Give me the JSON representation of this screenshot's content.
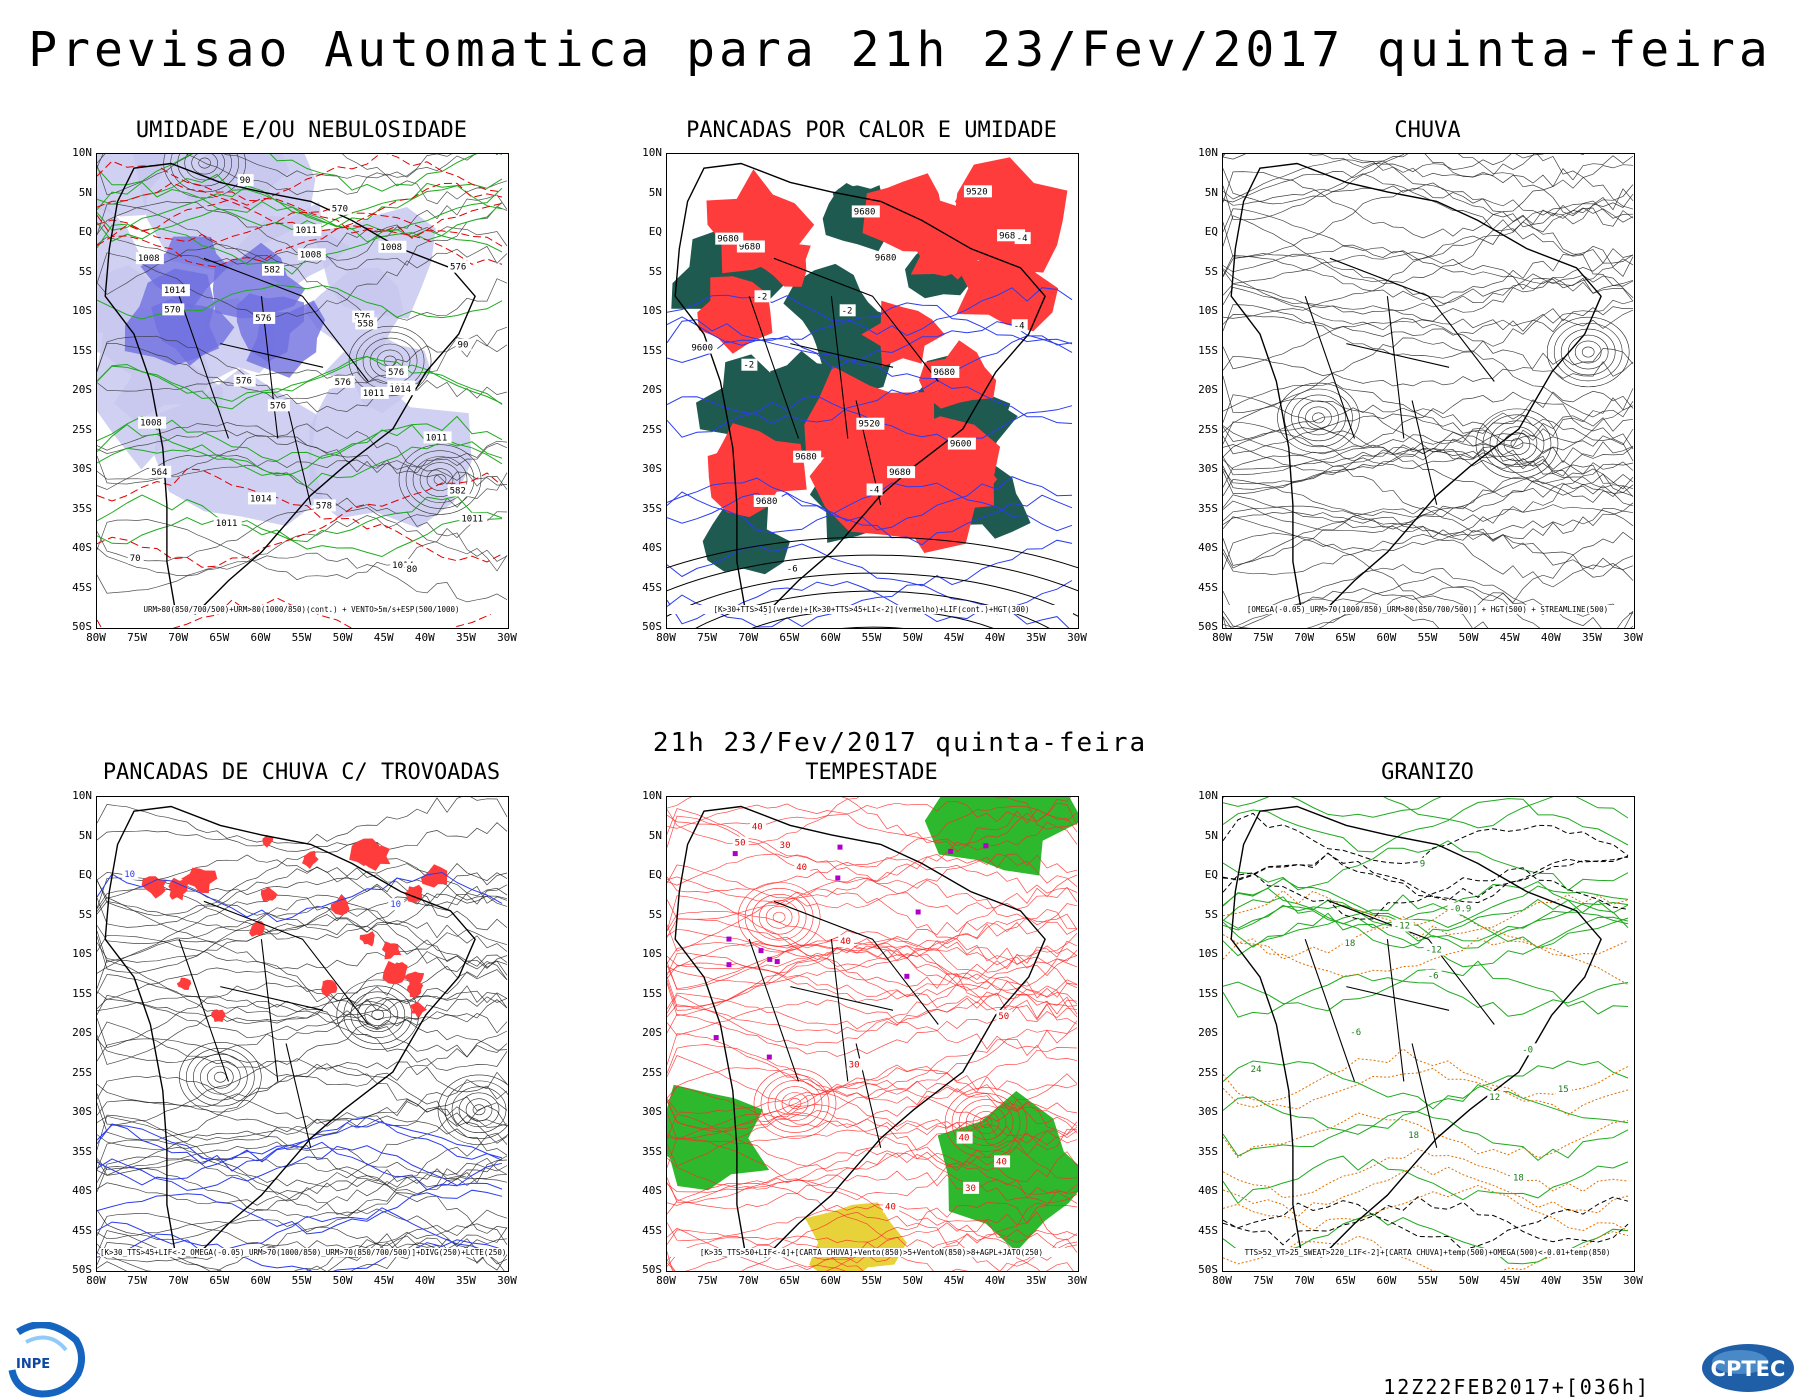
{
  "header": {
    "title": "Previsao Automatica  para 21h 23/Fev/2017 quinta-feira"
  },
  "mid_date": "21h 23/Fev/2017 quinta-feira",
  "footer": {
    "run": "12Z22FEB2017+[036h]"
  },
  "logos": {
    "left": "INPE",
    "right": "CPTEC"
  },
  "axes": {
    "lat_labels": [
      "10N",
      "5N",
      "EQ",
      "5S",
      "10S",
      "15S",
      "20S",
      "25S",
      "30S",
      "35S",
      "40S",
      "45S",
      "50S"
    ],
    "lon_labels": [
      "80W",
      "75W",
      "70W",
      "65W",
      "60W",
      "55W",
      "50W",
      "45W",
      "40W",
      "35W",
      "30W"
    ]
  },
  "panels": [
    {
      "id": "umidade",
      "title": "UMIDADE E/OU NEBULOSIDADE",
      "legend": "URM>80(850/700/500)+URM>80(1000/850)(cont.) + VENTO>5m/s+ESP(500/1000)",
      "labels": [
        "1011",
        "1008",
        "1008",
        "1011",
        "1008",
        "1011",
        "1014",
        "1008",
        "1011",
        "1014",
        "1011",
        "1014",
        "1011",
        "1014",
        "576",
        "576",
        "576",
        "576",
        "576",
        "578",
        "582",
        "576",
        "582",
        "570",
        "576",
        "564",
        "558",
        "570",
        "90",
        "90",
        "80",
        "70"
      ]
    },
    {
      "id": "pancadas-calor",
      "title": "PANCADAS POR CALOR E UMIDADE",
      "legend": "[K>30+TTS>45](verde)+[K>30+TTS>45+LI<-2](vermelho)+LIF(cont.)+HGT(300)",
      "labels": [
        "9680",
        "9680",
        "9680",
        "9680",
        "9680",
        "9680",
        "9680",
        "9680",
        "9680",
        "9600",
        "9520",
        "9600",
        "9520",
        "-2",
        "-4",
        "-2",
        "-4",
        "-6",
        "-4",
        "-2"
      ]
    },
    {
      "id": "chuva",
      "title": "CHUVA",
      "legend": "[OMEGA(-0.05)_URM>70(1000/850)_URM>80(850/700/500)] + HGT(500) + STREAMLINE(500)",
      "labels": []
    },
    {
      "id": "trovoadas",
      "title": "PANCADAS DE CHUVA C/ TROVOADAS",
      "legend": "[K>30_TTS>45+LIF<-2_OMEGA(-0.05)_URM>70(1000/850)_URM>70(850/700/500)]+DIVG(250)+LCTE(250)",
      "labels": [
        "10",
        "10"
      ]
    },
    {
      "id": "tempestade",
      "title": "TEMPESTADE",
      "legend": "[K>35_TTS>50+LIF<-4]+[CARTA CHUVA]+Vento(850)>5+VentoN(850)>8+AGPL+JATO(250)",
      "labels": [
        "30",
        "40",
        "40",
        "30",
        "50",
        "40",
        "40",
        "50",
        "40",
        "40",
        "30"
      ]
    },
    {
      "id": "granizo",
      "title": "GRANIZO",
      "legend": "TTS>52_VT>25_SWEAT>220_LIF<-2]+[CARTA CHUVA]+temp(500)+OMEGA(500)<-0.01+temp(850)",
      "labels": [
        "-6",
        "18",
        "18",
        "-6",
        "18",
        "24",
        "-12",
        "-0",
        "15",
        "9",
        "12",
        "-12",
        "-0.9"
      ]
    }
  ]
}
